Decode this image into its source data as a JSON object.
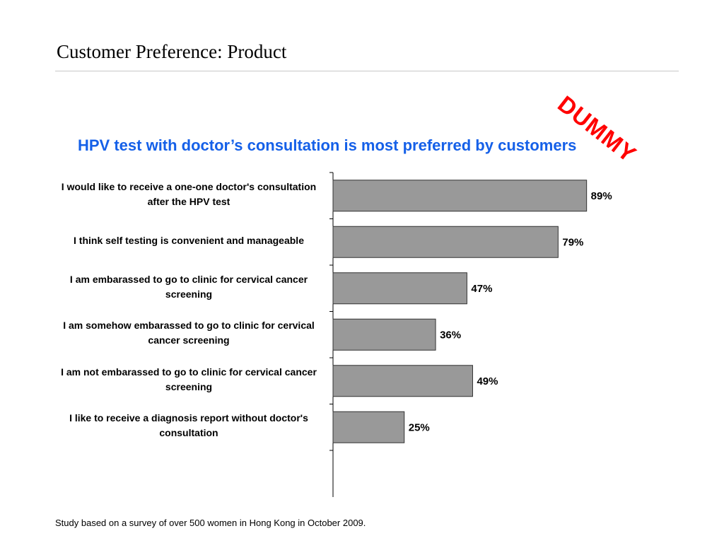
{
  "slide": {
    "title": "Customer Preference: Product",
    "stamp": "DUMMY",
    "headline": "HPV test with doctor’s consultation is most preferred by customers",
    "footnote": "Study based on a survey of over 500 women in Hong Kong in October 2009."
  },
  "colors": {
    "bar_fill": "#999999",
    "bar_stroke": "#333333",
    "headline": "#1560e8",
    "stamp": "#ff0000"
  },
  "chart_data": {
    "type": "bar",
    "orientation": "horizontal",
    "title": "",
    "xlabel": "",
    "ylabel": "",
    "xlim": [
      0,
      100
    ],
    "grid": false,
    "legend": "none",
    "categories": [
      "I would like to receive a one-one doctor's consultation after the HPV test",
      "I think self testing is convenient and manageable",
      "I am embarassed to go to clinic for cervical cancer screening",
      "I am somehow embarassed to go to clinic for cervical cancer screening",
      "I am not embarassed to go to clinic for cervical cancer screening",
      "I like to receive a diagnosis report without doctor's consultation"
    ],
    "values": [
      89,
      79,
      47,
      36,
      49,
      25
    ],
    "data_labels": [
      "89%",
      "79%",
      "47%",
      "36%",
      "49%",
      "25%"
    ]
  }
}
